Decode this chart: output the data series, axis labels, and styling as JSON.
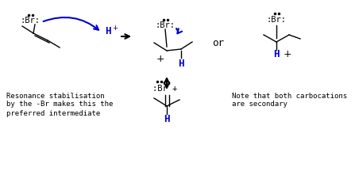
{
  "bg_color": "#ffffff",
  "black": "#000000",
  "blue": "#0000cc",
  "text_resonance_line1": "Resonance stabilisation",
  "text_resonance_line2": "by the -Br makes this the",
  "text_resonance_line3": "preferred intermediate",
  "text_note_line1": "Note that both carbocations",
  "text_note_line2": "are secondary"
}
